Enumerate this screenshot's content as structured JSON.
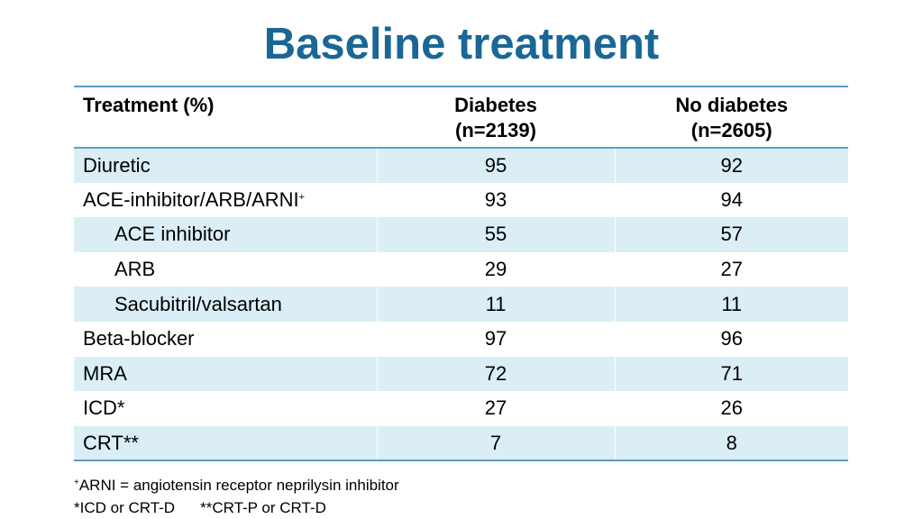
{
  "title": "Baseline treatment",
  "table": {
    "headers": [
      {
        "line1": "Treatment (%)",
        "line2": ""
      },
      {
        "line1": "Diabetes",
        "line2": "(n=2139)"
      },
      {
        "line1": "No diabetes",
        "line2": "(n=2605)"
      }
    ],
    "rows": [
      {
        "label": "Diuretic",
        "sup": "",
        "indent": false,
        "diabetes": "95",
        "no_diabetes": "92"
      },
      {
        "label": "ACE-inhibitor/ARB/ARNI",
        "sup": "+",
        "indent": false,
        "diabetes": "93",
        "no_diabetes": "94"
      },
      {
        "label": "ACE inhibitor",
        "sup": "",
        "indent": true,
        "diabetes": "55",
        "no_diabetes": "57"
      },
      {
        "label": "ARB",
        "sup": "",
        "indent": true,
        "diabetes": "29",
        "no_diabetes": "27"
      },
      {
        "label": "Sacubitril/valsartan",
        "sup": "",
        "indent": true,
        "diabetes": "11",
        "no_diabetes": "11"
      },
      {
        "label": "Beta-blocker",
        "sup": "",
        "indent": false,
        "diabetes": "97",
        "no_diabetes": "96"
      },
      {
        "label": "MRA",
        "sup": "",
        "indent": false,
        "diabetes": "72",
        "no_diabetes": "71"
      },
      {
        "label": "ICD*",
        "sup": "",
        "indent": false,
        "diabetes": "27",
        "no_diabetes": "26"
      },
      {
        "label": "CRT**",
        "sup": "",
        "indent": false,
        "diabetes": "7",
        "no_diabetes": "8"
      }
    ]
  },
  "footnotes": {
    "arni_sup": "+",
    "arni": "ARNI = angiotensin receptor neprilysin inhibitor",
    "icd": "*ICD or CRT-D",
    "crt": "**CRT-P or CRT-D"
  },
  "colors": {
    "title": "#1a6796",
    "row_shade": "#dbeef5",
    "rule": "#5b9ec2"
  }
}
